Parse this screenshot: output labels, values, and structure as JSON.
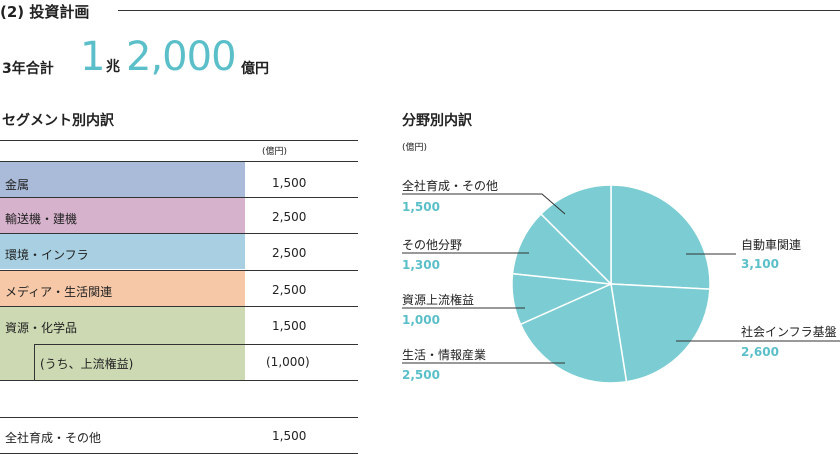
{
  "header": {
    "heading": "(2) 投資計画",
    "total_label": "3年合計",
    "total_part1": "1",
    "total_unit1": "兆",
    "total_part2": "2,000",
    "total_unit2": "億円"
  },
  "segments": {
    "title": "セグメント別内訳",
    "unit": "(億円)",
    "rows": [
      {
        "label": "金属",
        "value": "1,500",
        "color": "#a9bbd8"
      },
      {
        "label": "輸送機・建機",
        "value": "2,500",
        "color": "#d7b2cd"
      },
      {
        "label": "環境・インフラ",
        "value": "2,500",
        "color": "#a8d0e2"
      },
      {
        "label": "メディア・生活関連",
        "value": "2,500",
        "color": "#f6c8a8"
      },
      {
        "label": "資源・化学品",
        "value": "1,500",
        "color": "#ccd9b2"
      }
    ],
    "sub_row": {
      "label": "(うち、上流権益)",
      "value": "(1,000)"
    },
    "other_row": {
      "label": "全社育成・その他",
      "value": "1,500"
    }
  },
  "distribution": {
    "title": "分野別内訳",
    "unit": "(億円)",
    "fill_color": "#7bcdd3",
    "chart_data": {
      "type": "pie",
      "title": "",
      "slices": [
        {
          "label": "自動車関連",
          "value": 3100
        },
        {
          "label": "社会インフラ基盤",
          "value": 2600
        },
        {
          "label": "生活・情報産業",
          "value": 2500
        },
        {
          "label": "資源上流権益",
          "value": 1000
        },
        {
          "label": "その他分野",
          "value": 1300
        },
        {
          "label": "全社育成・その他",
          "value": 1500
        }
      ],
      "display_values": [
        "3,100",
        "2,600",
        "2,500",
        "1,000",
        "1,300",
        "1,500"
      ]
    }
  }
}
